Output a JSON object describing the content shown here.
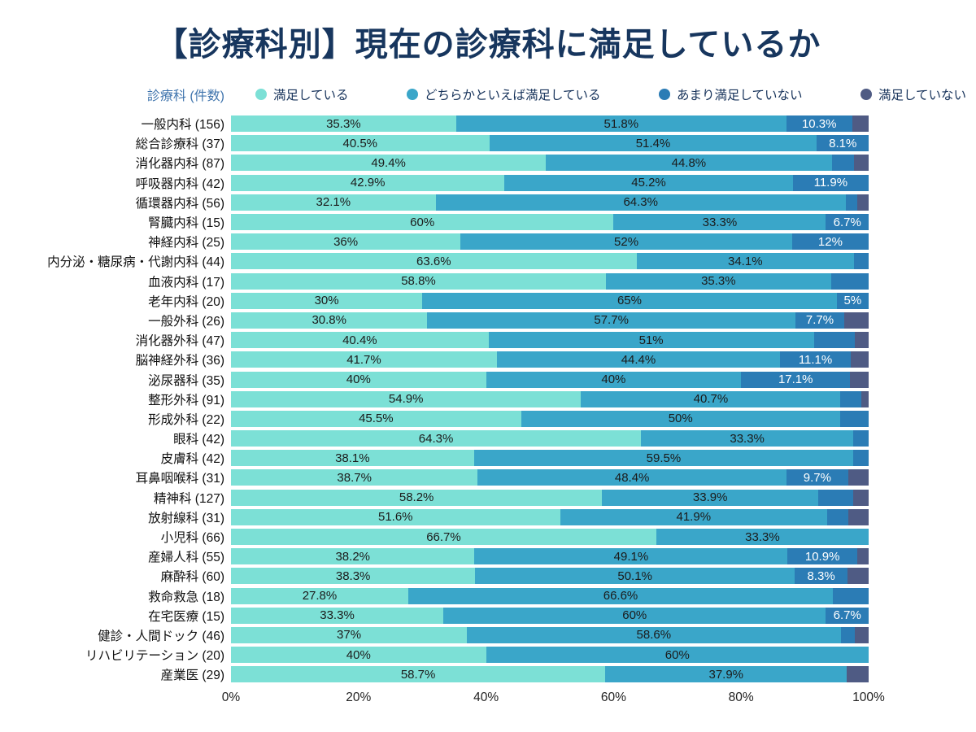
{
  "page": {
    "title": "【診療科別】現在の診療科に満足しているか"
  },
  "chart_data": {
    "type": "bar",
    "orientation": "horizontal",
    "stacked": true,
    "title": "【診療科別】現在の診療科に満足しているか",
    "axis_label_left": "診療科 (件数)",
    "legend": [
      "満足している",
      "どちらかといえば満足している",
      "あまり満足していない",
      "満足していない"
    ],
    "legend_position": "top",
    "colors": [
      "#7ce0d6",
      "#3aa6c9",
      "#2b7cb5",
      "#4f5b84"
    ],
    "xlim": [
      0,
      100
    ],
    "x_ticks": [
      "0%",
      "20%",
      "40%",
      "60%",
      "80%",
      "100%"
    ],
    "grid": false,
    "rows": [
      {
        "label": "一般内科 (156)",
        "values": [
          35.3,
          51.8,
          10.3,
          2.6
        ],
        "labels": [
          "35.3%",
          "51.8%",
          "10.3%",
          ""
        ]
      },
      {
        "label": "総合診療科 (37)",
        "values": [
          40.5,
          51.4,
          8.1,
          0
        ],
        "labels": [
          "40.5%",
          "51.4%",
          "8.1%",
          ""
        ]
      },
      {
        "label": "消化器内科 (87)",
        "values": [
          49.4,
          44.8,
          3.5,
          2.3
        ],
        "labels": [
          "49.4%",
          "44.8%",
          "",
          ""
        ]
      },
      {
        "label": "呼吸器内科 (42)",
        "values": [
          42.9,
          45.2,
          11.9,
          0
        ],
        "labels": [
          "42.9%",
          "45.2%",
          "11.9%",
          ""
        ]
      },
      {
        "label": "循環器内科 (56)",
        "values": [
          32.1,
          64.3,
          1.8,
          1.8
        ],
        "labels": [
          "32.1%",
          "64.3%",
          "",
          ""
        ]
      },
      {
        "label": "腎臓内科 (15)",
        "values": [
          60,
          33.3,
          6.7,
          0
        ],
        "labels": [
          "60%",
          "33.3%",
          "6.7%",
          ""
        ]
      },
      {
        "label": "神経内科 (25)",
        "values": [
          36,
          52,
          12,
          0
        ],
        "labels": [
          "36%",
          "52%",
          "12%",
          ""
        ]
      },
      {
        "label": "内分泌・糖尿病・代謝内科 (44)",
        "values": [
          63.6,
          34.1,
          2.3,
          0
        ],
        "labels": [
          "63.6%",
          "34.1%",
          "",
          ""
        ]
      },
      {
        "label": "血液内科 (17)",
        "values": [
          58.8,
          35.3,
          5.9,
          0
        ],
        "labels": [
          "58.8%",
          "35.3%",
          "",
          ""
        ]
      },
      {
        "label": "老年内科 (20)",
        "values": [
          30,
          65,
          5,
          0
        ],
        "labels": [
          "30%",
          "65%",
          "5%",
          ""
        ]
      },
      {
        "label": "一般外科 (26)",
        "values": [
          30.8,
          57.7,
          7.7,
          3.8
        ],
        "labels": [
          "30.8%",
          "57.7%",
          "7.7%",
          ""
        ]
      },
      {
        "label": "消化器外科 (47)",
        "values": [
          40.4,
          51,
          6.4,
          2.2
        ],
        "labels": [
          "40.4%",
          "51%",
          "",
          ""
        ]
      },
      {
        "label": "脳神経外科 (36)",
        "values": [
          41.7,
          44.4,
          11.1,
          2.8
        ],
        "labels": [
          "41.7%",
          "44.4%",
          "11.1%",
          ""
        ]
      },
      {
        "label": "泌尿器科 (35)",
        "values": [
          40,
          40,
          17.1,
          2.9
        ],
        "labels": [
          "40%",
          "40%",
          "17.1%",
          ""
        ]
      },
      {
        "label": "整形外科 (91)",
        "values": [
          54.9,
          40.7,
          3.3,
          1.1
        ],
        "labels": [
          "54.9%",
          "40.7%",
          "",
          ""
        ]
      },
      {
        "label": "形成外科 (22)",
        "values": [
          45.5,
          50,
          4.5,
          0
        ],
        "labels": [
          "45.5%",
          "50%",
          "",
          ""
        ]
      },
      {
        "label": "眼科 (42)",
        "values": [
          64.3,
          33.3,
          2.4,
          0
        ],
        "labels": [
          "64.3%",
          "33.3%",
          "",
          ""
        ]
      },
      {
        "label": "皮膚科 (42)",
        "values": [
          38.1,
          59.5,
          2.4,
          0
        ],
        "labels": [
          "38.1%",
          "59.5%",
          "",
          ""
        ]
      },
      {
        "label": "耳鼻咽喉科 (31)",
        "values": [
          38.7,
          48.4,
          9.7,
          3.2
        ],
        "labels": [
          "38.7%",
          "48.4%",
          "9.7%",
          ""
        ]
      },
      {
        "label": "精神科 (127)",
        "values": [
          58.2,
          33.9,
          5.5,
          2.4
        ],
        "labels": [
          "58.2%",
          "33.9%",
          "",
          ""
        ]
      },
      {
        "label": "放射線科 (31)",
        "values": [
          51.6,
          41.9,
          3.3,
          3.2
        ],
        "labels": [
          "51.6%",
          "41.9%",
          "",
          ""
        ]
      },
      {
        "label": "小児科 (66)",
        "values": [
          66.7,
          33.3,
          0,
          0
        ],
        "labels": [
          "66.7%",
          "33.3%",
          "",
          ""
        ]
      },
      {
        "label": "産婦人科 (55)",
        "values": [
          38.2,
          49.1,
          10.9,
          1.8
        ],
        "labels": [
          "38.2%",
          "49.1%",
          "10.9%",
          ""
        ]
      },
      {
        "label": "麻酔科 (60)",
        "values": [
          38.3,
          50.1,
          8.3,
          3.3
        ],
        "labels": [
          "38.3%",
          "50.1%",
          "8.3%",
          ""
        ]
      },
      {
        "label": "救命救急 (18)",
        "values": [
          27.8,
          66.6,
          5.6,
          0
        ],
        "labels": [
          "27.8%",
          "66.6%",
          "",
          ""
        ]
      },
      {
        "label": "在宅医療 (15)",
        "values": [
          33.3,
          60,
          6.7,
          0
        ],
        "labels": [
          "33.3%",
          "60%",
          "6.7%",
          ""
        ]
      },
      {
        "label": "健診・人間ドック (46)",
        "values": [
          37,
          58.6,
          2.2,
          2.2
        ],
        "labels": [
          "37%",
          "58.6%",
          "",
          ""
        ]
      },
      {
        "label": "リハビリテーション (20)",
        "values": [
          40,
          60,
          0,
          0
        ],
        "labels": [
          "40%",
          "60%",
          "",
          ""
        ]
      },
      {
        "label": "産業医 (29)",
        "values": [
          58.7,
          37.9,
          0,
          3.4
        ],
        "labels": [
          "58.7%",
          "37.9%",
          "",
          ""
        ]
      }
    ]
  }
}
